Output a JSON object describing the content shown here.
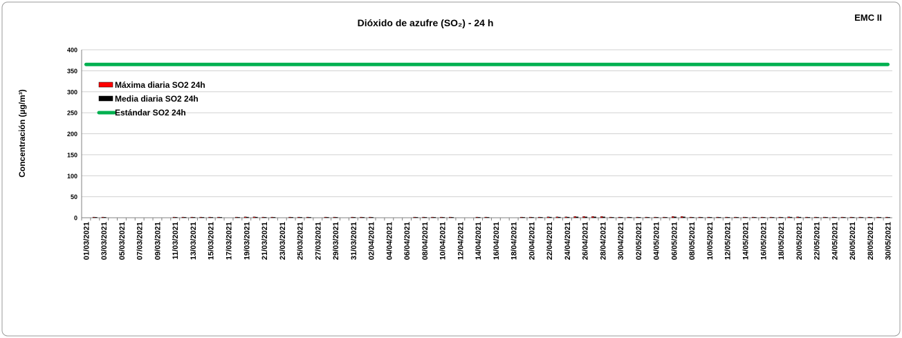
{
  "chart_data": {
    "type": "bar",
    "title": "Dióxido de azufre (SO₂) - 24 h",
    "badge": "EMC II",
    "y_label": "Concentración (µg/m³)",
    "categories": [
      "01/03/2021",
      null,
      "03/03/2021",
      null,
      "05/03/2021",
      null,
      "07/03/2021",
      null,
      "09/03/2021",
      null,
      "11/03/2021",
      null,
      "13/03/2021",
      null,
      "15/03/2021",
      null,
      "17/03/2021",
      null,
      "19/03/2021",
      null,
      "21/03/2021",
      null,
      "23/03/2021",
      null,
      "25/03/2021",
      null,
      "27/03/2021",
      null,
      "29/03/2021",
      null,
      "31/03/2021",
      null,
      "02/04/2021",
      null,
      "04/04/2021",
      null,
      "06/04/2021",
      null,
      "08/04/2021",
      null,
      "10/04/2021",
      null,
      "12/04/2021",
      null,
      "14/04/2021",
      null,
      "16/04/2021",
      null,
      "18/04/2021",
      null,
      "20/04/2021",
      null,
      "22/04/2021",
      null,
      "24/04/2021",
      null,
      "26/04/2021",
      null,
      "28/04/2021",
      null,
      "30/04/2021",
      null,
      "02/05/2021",
      null,
      "04/05/2021",
      null,
      "06/05/2021",
      null,
      "08/05/2021",
      null,
      "10/05/2021",
      null,
      "12/05/2021",
      null,
      "14/05/2021",
      null,
      "16/05/2021",
      null,
      "18/05/2021",
      null,
      "20/05/2021",
      null,
      "22/05/2021",
      null,
      "24/05/2021",
      null,
      "26/05/2021",
      null,
      "28/05/2021",
      null,
      "30/05/2021"
    ],
    "series": [
      {
        "name": "Máxima diaria SO2 24h",
        "color": "#ff0000",
        "kind": "bar",
        "values": [
          null,
          1.5,
          1.5,
          null,
          null,
          null,
          null,
          null,
          null,
          null,
          1.5,
          1.5,
          1.5,
          1.5,
          1.5,
          1.5,
          null,
          1.5,
          2,
          2,
          1.5,
          1.5,
          null,
          1.5,
          1.5,
          1.5,
          null,
          1.5,
          1.5,
          null,
          1.5,
          1.5,
          1.5,
          null,
          null,
          null,
          null,
          1.5,
          1.5,
          1.5,
          1.5,
          1.5,
          null,
          null,
          1.5,
          1.5,
          null,
          null,
          null,
          1.5,
          1.5,
          1.5,
          2,
          2,
          2,
          3,
          3,
          3,
          3,
          1.5,
          1.5,
          1.5,
          1.5,
          1.5,
          1.5,
          1.5,
          3,
          3,
          1.5,
          1.5,
          1.5,
          1.5,
          1.5,
          1.5,
          1.5,
          1.5,
          1.5,
          1.5,
          1.5,
          2,
          2,
          1.5,
          1.5,
          1.5,
          1.5,
          1.5,
          1.5,
          1.5,
          1.5,
          1.5,
          1.5
        ]
      },
      {
        "name": "Media diaria SO2 24h",
        "color": "#000000",
        "kind": "bar",
        "values": [
          null,
          1,
          1,
          null,
          null,
          null,
          null,
          null,
          null,
          null,
          1,
          1,
          1,
          1,
          1,
          1,
          null,
          1,
          1.5,
          1.5,
          1,
          1,
          null,
          1,
          1,
          1,
          null,
          1,
          1,
          null,
          1,
          1,
          1,
          null,
          null,
          null,
          null,
          1,
          1,
          1,
          1,
          1,
          null,
          null,
          1,
          1,
          null,
          null,
          null,
          1,
          1,
          1,
          1.5,
          1.5,
          1.5,
          2,
          2,
          2,
          2,
          1,
          1,
          1,
          1,
          1,
          1,
          1,
          2,
          2,
          1,
          1,
          1,
          1,
          1,
          1,
          1,
          1,
          1,
          1,
          1,
          1.5,
          1.5,
          1,
          1,
          1,
          1,
          1,
          1,
          1,
          1,
          1,
          1
        ]
      },
      {
        "name": "Estándar SO2 24h",
        "color": "#00b050",
        "kind": "line",
        "values": [
          365,
          365,
          365,
          365,
          365,
          365,
          365,
          365,
          365,
          365,
          365,
          365,
          365,
          365,
          365,
          365,
          365,
          365,
          365,
          365,
          365,
          365,
          365,
          365,
          365,
          365,
          365,
          365,
          365,
          365,
          365,
          365,
          365,
          365,
          365,
          365,
          365,
          365,
          365,
          365,
          365,
          365,
          365,
          365,
          365,
          365,
          365,
          365,
          365,
          365,
          365,
          365,
          365,
          365,
          365,
          365,
          365,
          365,
          365,
          365,
          365,
          365,
          365,
          365,
          365,
          365,
          365,
          365,
          365,
          365,
          365,
          365,
          365,
          365,
          365,
          365,
          365,
          365,
          365,
          365,
          365,
          365,
          365,
          365,
          365,
          365,
          365,
          365,
          365,
          365,
          365
        ]
      }
    ],
    "ylim": [
      0,
      400
    ],
    "yticks": [
      0,
      50,
      100,
      150,
      200,
      250,
      300,
      350,
      400
    ],
    "grid": true,
    "legend": "top-left"
  }
}
